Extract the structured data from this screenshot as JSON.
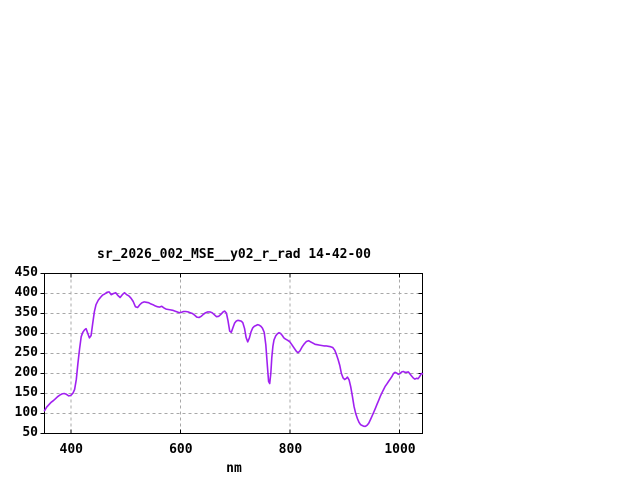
{
  "window": {
    "background": "#ffffff"
  },
  "chart_data": {
    "type": "line",
    "title": "sr_2026_002_MSE__y02_r_rad 14-42-00",
    "xlabel": "nm",
    "ylabel": "",
    "xlim": [
      352,
      1042
    ],
    "ylim": [
      50,
      450
    ],
    "xticks": [
      400,
      600,
      800,
      1000
    ],
    "yticks": [
      50,
      100,
      150,
      200,
      250,
      300,
      350,
      400,
      450
    ],
    "grid": true,
    "legend_position": "none",
    "line_color": "#a020f0",
    "grid_color": "#a8a8a8",
    "border_color": "#000000",
    "series": [
      {
        "points": [
          [
            352,
            107
          ],
          [
            356,
            116
          ],
          [
            360,
            122
          ],
          [
            364,
            128
          ],
          [
            368,
            132
          ],
          [
            372,
            137
          ],
          [
            376,
            142
          ],
          [
            380,
            146
          ],
          [
            384,
            149
          ],
          [
            388,
            150
          ],
          [
            392,
            148
          ],
          [
            396,
            144
          ],
          [
            400,
            145
          ],
          [
            404,
            151
          ],
          [
            407,
            160
          ],
          [
            410,
            185
          ],
          [
            413,
            225
          ],
          [
            416,
            262
          ],
          [
            419,
            292
          ],
          [
            422,
            303
          ],
          [
            425,
            309
          ],
          [
            428,
            312
          ],
          [
            431,
            300
          ],
          [
            434,
            289
          ],
          [
            437,
            295
          ],
          [
            440,
            325
          ],
          [
            443,
            355
          ],
          [
            446,
            372
          ],
          [
            450,
            383
          ],
          [
            454,
            390
          ],
          [
            458,
            396
          ],
          [
            462,
            399
          ],
          [
            466,
            403
          ],
          [
            470,
            404
          ],
          [
            474,
            397
          ],
          [
            478,
            400
          ],
          [
            482,
            402
          ],
          [
            486,
            395
          ],
          [
            490,
            390
          ],
          [
            494,
            397
          ],
          [
            498,
            402
          ],
          [
            502,
            397
          ],
          [
            506,
            394
          ],
          [
            510,
            388
          ],
          [
            514,
            380
          ],
          [
            518,
            367
          ],
          [
            522,
            365
          ],
          [
            526,
            372
          ],
          [
            530,
            377
          ],
          [
            534,
            379
          ],
          [
            538,
            378
          ],
          [
            542,
            377
          ],
          [
            546,
            374
          ],
          [
            550,
            372
          ],
          [
            554,
            369
          ],
          [
            558,
            367
          ],
          [
            562,
            366
          ],
          [
            566,
            368
          ],
          [
            570,
            364
          ],
          [
            574,
            361
          ],
          [
            578,
            360
          ],
          [
            582,
            359
          ],
          [
            586,
            358
          ],
          [
            590,
            356
          ],
          [
            594,
            354
          ],
          [
            598,
            352
          ],
          [
            602,
            353
          ],
          [
            606,
            355
          ],
          [
            610,
            355
          ],
          [
            614,
            354
          ],
          [
            618,
            352
          ],
          [
            622,
            350
          ],
          [
            626,
            346
          ],
          [
            630,
            341
          ],
          [
            634,
            340
          ],
          [
            638,
            343
          ],
          [
            642,
            348
          ],
          [
            646,
            352
          ],
          [
            650,
            354
          ],
          [
            654,
            354
          ],
          [
            658,
            352
          ],
          [
            662,
            347
          ],
          [
            666,
            342
          ],
          [
            670,
            343
          ],
          [
            674,
            348
          ],
          [
            678,
            354
          ],
          [
            681,
            356
          ],
          [
            684,
            351
          ],
          [
            687,
            332
          ],
          [
            690,
            306
          ],
          [
            693,
            303
          ],
          [
            696,
            315
          ],
          [
            699,
            326
          ],
          [
            702,
            331
          ],
          [
            705,
            333
          ],
          [
            708,
            332
          ],
          [
            711,
            331
          ],
          [
            714,
            327
          ],
          [
            717,
            313
          ],
          [
            720,
            290
          ],
          [
            723,
            279
          ],
          [
            726,
            289
          ],
          [
            729,
            304
          ],
          [
            732,
            314
          ],
          [
            735,
            318
          ],
          [
            738,
            320
          ],
          [
            741,
            322
          ],
          [
            744,
            321
          ],
          [
            747,
            318
          ],
          [
            750,
            313
          ],
          [
            753,
            303
          ],
          [
            756,
            272
          ],
          [
            759,
            215
          ],
          [
            761,
            180
          ],
          [
            763,
            175
          ],
          [
            765,
            200
          ],
          [
            767,
            240
          ],
          [
            769,
            268
          ],
          [
            771,
            284
          ],
          [
            774,
            294
          ],
          [
            777,
            299
          ],
          [
            780,
            302
          ],
          [
            783,
            300
          ],
          [
            786,
            295
          ],
          [
            789,
            289
          ],
          [
            792,
            286
          ],
          [
            796,
            283
          ],
          [
            800,
            279
          ],
          [
            804,
            271
          ],
          [
            808,
            263
          ],
          [
            812,
            255
          ],
          [
            815,
            252
          ],
          [
            818,
            256
          ],
          [
            822,
            266
          ],
          [
            826,
            274
          ],
          [
            830,
            280
          ],
          [
            834,
            282
          ],
          [
            838,
            279
          ],
          [
            842,
            276
          ],
          [
            846,
            273
          ],
          [
            850,
            272
          ],
          [
            854,
            271
          ],
          [
            858,
            270
          ],
          [
            862,
            269
          ],
          [
            866,
            269
          ],
          [
            870,
            268
          ],
          [
            874,
            267
          ],
          [
            878,
            265
          ],
          [
            882,
            258
          ],
          [
            885,
            247
          ],
          [
            888,
            235
          ],
          [
            891,
            220
          ],
          [
            894,
            200
          ],
          [
            897,
            189
          ],
          [
            900,
            185
          ],
          [
            903,
            188
          ],
          [
            905,
            191
          ],
          [
            908,
            184
          ],
          [
            911,
            167
          ],
          [
            914,
            143
          ],
          [
            917,
            118
          ],
          [
            920,
            100
          ],
          [
            923,
            88
          ],
          [
            926,
            78
          ],
          [
            929,
            72
          ],
          [
            932,
            70
          ],
          [
            935,
            68
          ],
          [
            938,
            68
          ],
          [
            941,
            71
          ],
          [
            944,
            76
          ],
          [
            947,
            85
          ],
          [
            950,
            94
          ],
          [
            953,
            103
          ],
          [
            956,
            113
          ],
          [
            959,
            123
          ],
          [
            962,
            133
          ],
          [
            965,
            143
          ],
          [
            968,
            152
          ],
          [
            971,
            160
          ],
          [
            974,
            168
          ],
          [
            977,
            174
          ],
          [
            980,
            180
          ],
          [
            983,
            186
          ],
          [
            986,
            192
          ],
          [
            989,
            200
          ],
          [
            992,
            203
          ],
          [
            995,
            201
          ],
          [
            998,
            198
          ],
          [
            1001,
            200
          ],
          [
            1004,
            204
          ],
          [
            1007,
            205
          ],
          [
            1010,
            203
          ],
          [
            1013,
            203
          ],
          [
            1016,
            204
          ],
          [
            1019,
            199
          ],
          [
            1022,
            194
          ],
          [
            1025,
            189
          ],
          [
            1028,
            186
          ],
          [
            1031,
            188
          ],
          [
            1034,
            187
          ],
          [
            1037,
            193
          ],
          [
            1040,
            200
          ],
          [
            1042,
            199
          ]
        ]
      }
    ]
  }
}
